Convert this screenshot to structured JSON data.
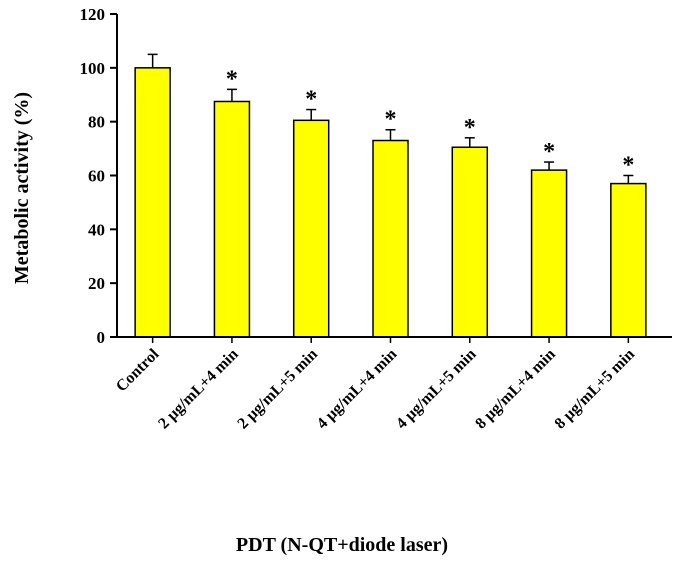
{
  "chart_data": {
    "type": "bar",
    "title": "",
    "xlabel": "PDT (N-QT+diode laser)",
    "ylabel": "Metabolic activity (%)",
    "ylim": [
      0,
      120
    ],
    "yticks": [
      0,
      20,
      40,
      60,
      80,
      100,
      120
    ],
    "categories": [
      "Control",
      "2 µg/mL+4 min",
      "2 µg/mL+5 min",
      "4 µg/mL+4 min",
      "4 µg/mL+5 min",
      "8 µg/mL+4 min",
      "8 µg/mL+5 min"
    ],
    "values": [
      100,
      87.5,
      80.5,
      73,
      70.5,
      62,
      57
    ],
    "errors": [
      5,
      4.5,
      4,
      4,
      3.5,
      3,
      3
    ],
    "significance": [
      "",
      "*",
      "*",
      "*",
      "*",
      "*",
      "*"
    ],
    "grid": false,
    "legend": "none",
    "colors": {
      "bar_fill": "#ffff00",
      "bar_stroke": "#000000"
    }
  }
}
